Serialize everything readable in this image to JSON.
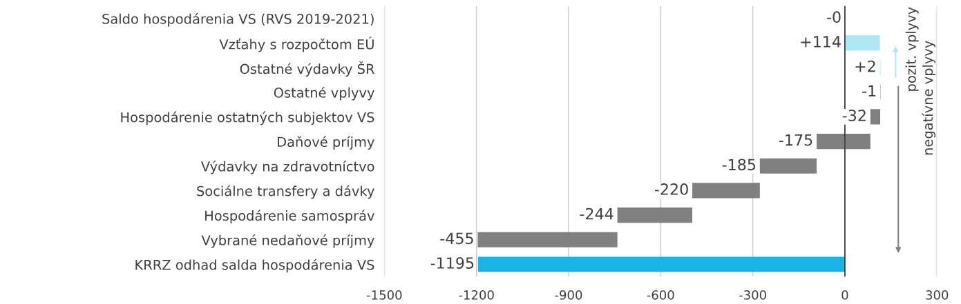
{
  "chart_data": {
    "type": "bar",
    "orientation": "horizontal",
    "categories": [
      "Saldo hospodárenia VS (RVS 2019-2021)",
      "Vzťahy s rozpočtom EÚ",
      "Ostatné výdavky ŠR",
      "Ostatné vplyvy",
      "Hospodárenie ostatných subjektov VS",
      "Daňové príjmy",
      "Výdavky na zdravotníctvo",
      "Sociálne transfery a dávky",
      "Hospodárenie samospráv",
      "Vybrané nedaňové príjmy",
      "KRRZ odhad salda hospodárenia VS"
    ],
    "values": [
      0,
      114,
      2,
      -1,
      -32,
      -175,
      -185,
      -220,
      -244,
      -455,
      -1195
    ],
    "base": [
      null,
      0,
      114,
      116,
      115,
      83,
      -92,
      -277,
      -497,
      -741,
      0
    ],
    "value_labels": [
      "-0",
      "+114",
      "+2",
      "-1",
      "-32",
      "-175",
      "-185",
      "-220",
      "-244",
      "-455",
      "-1195"
    ],
    "colors": [
      "#808080",
      "#aee6f5",
      "#aee6f5",
      "#808080",
      "#808080",
      "#808080",
      "#808080",
      "#808080",
      "#808080",
      "#808080",
      "#1ab4e8"
    ],
    "xlim": [
      -1500,
      300
    ],
    "xticks": [
      -1500,
      -1200,
      -900,
      -600,
      -300,
      0,
      300
    ],
    "grid": "x",
    "ref_lines": [
      {
        "axis": "x",
        "value": 0,
        "color": "#404040"
      }
    ],
    "annotations": [
      "pozit. vplyvy",
      "negatívne vplyvy"
    ]
  }
}
